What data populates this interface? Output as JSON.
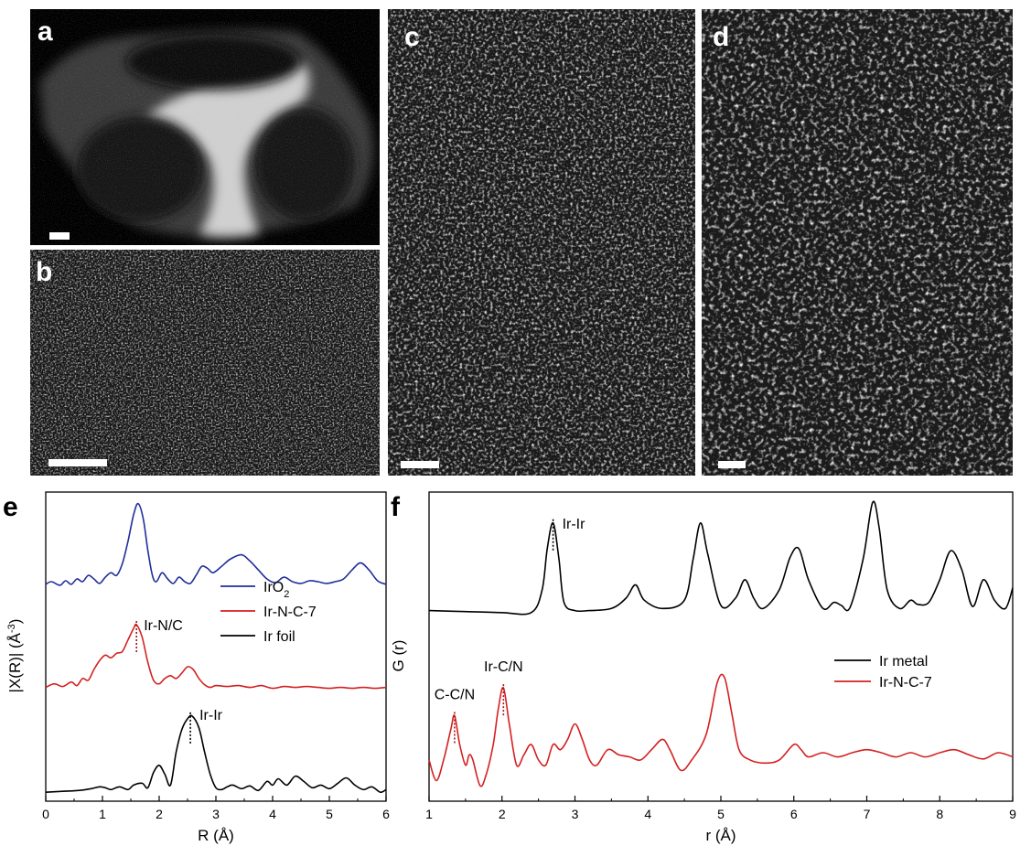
{
  "panels": {
    "a": {
      "label": "a"
    },
    "b": {
      "label": "b"
    },
    "c": {
      "label": "c"
    },
    "d": {
      "label": "d"
    },
    "e": {
      "label": "e"
    },
    "f": {
      "label": "f"
    }
  },
  "colors": {
    "irO2": "#1f2e9c",
    "irNC7": "#d42020",
    "ir": "#000000",
    "marker_red": "#a0151c"
  },
  "chart_data": [
    {
      "type": "line",
      "panel": "e",
      "xlabel": "R (Å)",
      "ylabel": "|X(R)| (Å-3)",
      "ylabel_main": "|X(R)| (Å",
      "ylabel_sup": "-3",
      "ylabel_end": ")",
      "xlim": [
        0,
        6
      ],
      "xticks": [
        "0",
        "1",
        "2",
        "3",
        "4",
        "5",
        "6"
      ],
      "legend_placement": "right",
      "legend": [
        {
          "name": "IrO",
          "sub": "2",
          "color": "#1f2e9c"
        },
        {
          "name": "Ir-N-C-7",
          "sub": "",
          "color": "#d42020"
        },
        {
          "name": "Ir foil",
          "sub": "",
          "color": "#000000"
        }
      ],
      "annotations": [
        {
          "text": "Ir-N/C",
          "x": 1.6
        },
        {
          "text": "Ir-Ir",
          "x": 2.55
        }
      ],
      "series": [
        {
          "key": "irO2",
          "offset": 2.3,
          "x": [
            0,
            0.1,
            0.25,
            0.35,
            0.45,
            0.55,
            0.65,
            0.75,
            0.85,
            0.95,
            1.05,
            1.15,
            1.25,
            1.35,
            1.45,
            1.55,
            1.63,
            1.72,
            1.8,
            1.88,
            1.95,
            2.05,
            2.15,
            2.25,
            2.35,
            2.45,
            2.55,
            2.65,
            2.75,
            2.85,
            2.95,
            3.1,
            3.25,
            3.45,
            3.6,
            3.75,
            3.9,
            4.05,
            4.2,
            4.35,
            4.5,
            4.65,
            4.8,
            4.95,
            5.1,
            5.25,
            5.4,
            5.55,
            5.7,
            5.85,
            6.0
          ],
          "y": [
            0.02,
            0.05,
            0.01,
            0.06,
            0.02,
            0.08,
            0.05,
            0.12,
            0.08,
            0.03,
            0.1,
            0.15,
            0.12,
            0.25,
            0.5,
            0.8,
            0.92,
            0.75,
            0.4,
            0.12,
            0.05,
            0.15,
            0.08,
            0.03,
            0.1,
            0.05,
            0.03,
            0.12,
            0.22,
            0.2,
            0.15,
            0.22,
            0.3,
            0.35,
            0.28,
            0.18,
            0.08,
            0.04,
            0.1,
            0.05,
            0.03,
            0.06,
            0.05,
            0.03,
            0.05,
            0.08,
            0.18,
            0.26,
            0.18,
            0.06,
            0.02
          ]
        },
        {
          "key": "irNC7",
          "offset": 1.15,
          "x": [
            0,
            0.15,
            0.3,
            0.45,
            0.55,
            0.65,
            0.75,
            0.85,
            0.95,
            1.05,
            1.15,
            1.25,
            1.35,
            1.45,
            1.55,
            1.6,
            1.7,
            1.8,
            1.9,
            2.0,
            2.1,
            2.2,
            2.3,
            2.4,
            2.5,
            2.6,
            2.7,
            2.8,
            2.9,
            3.0,
            3.2,
            3.4,
            3.6,
            3.8,
            4.0,
            4.2,
            4.4,
            4.6,
            4.8,
            5.0,
            5.2,
            5.4,
            5.6,
            5.8,
            6.0
          ],
          "y": [
            0.02,
            0.06,
            0.03,
            0.08,
            0.04,
            0.12,
            0.1,
            0.22,
            0.32,
            0.38,
            0.35,
            0.4,
            0.42,
            0.55,
            0.68,
            0.72,
            0.58,
            0.3,
            0.1,
            0.06,
            0.12,
            0.15,
            0.12,
            0.18,
            0.25,
            0.22,
            0.12,
            0.05,
            0.02,
            0.04,
            0.03,
            0.04,
            0.02,
            0.04,
            0.01,
            0.03,
            0.02,
            0.03,
            0.02,
            0.01,
            0.02,
            0.01,
            0.02,
            0.01,
            0.02
          ]
        },
        {
          "key": "ir",
          "offset": 0.0,
          "x": [
            0,
            0.3,
            0.6,
            0.8,
            0.95,
            1.05,
            1.15,
            1.3,
            1.45,
            1.55,
            1.7,
            1.8,
            1.9,
            2.0,
            2.1,
            2.2,
            2.3,
            2.4,
            2.5,
            2.58,
            2.7,
            2.8,
            2.9,
            3.0,
            3.1,
            3.2,
            3.3,
            3.45,
            3.6,
            3.75,
            3.9,
            4.0,
            4.1,
            4.25,
            4.4,
            4.55,
            4.7,
            4.85,
            5.0,
            5.15,
            5.3,
            5.45,
            5.6,
            5.75,
            5.9,
            6.0
          ],
          "y": [
            0.0,
            0.01,
            0.02,
            0.04,
            0.06,
            0.05,
            0.03,
            0.06,
            0.03,
            0.08,
            0.1,
            0.05,
            0.22,
            0.3,
            0.2,
            0.08,
            0.45,
            0.7,
            0.82,
            0.85,
            0.72,
            0.45,
            0.2,
            0.05,
            0.03,
            0.06,
            0.08,
            0.04,
            0.07,
            0.02,
            0.12,
            0.08,
            0.15,
            0.08,
            0.18,
            0.12,
            0.05,
            0.08,
            0.04,
            0.1,
            0.16,
            0.08,
            0.03,
            0.06,
            0.0,
            0.03
          ]
        }
      ]
    },
    {
      "type": "line",
      "panel": "f",
      "xlabel": "r (Å)",
      "ylabel": "G (r)",
      "xlim": [
        1,
        9
      ],
      "xticks": [
        "1",
        "2",
        "3",
        "4",
        "5",
        "6",
        "7",
        "8",
        "9"
      ],
      "legend_placement": "right",
      "legend": [
        {
          "name": "Ir metal",
          "color": "#000000"
        },
        {
          "name": "Ir-N-C-7",
          "color": "#d42020"
        }
      ],
      "annotations": [
        {
          "text": "Ir-Ir",
          "x": 2.7
        },
        {
          "text": "Ir-C/N",
          "x": 2.02
        },
        {
          "text": "C-C/N",
          "x": 1.35
        }
      ],
      "series": [
        {
          "key": "ir",
          "offset": 1.5,
          "x": [
            1.0,
            1.5,
            2.0,
            2.4,
            2.55,
            2.62,
            2.7,
            2.78,
            2.85,
            3.0,
            3.2,
            3.5,
            3.7,
            3.83,
            3.95,
            4.2,
            4.5,
            4.62,
            4.72,
            4.82,
            5.0,
            5.2,
            5.33,
            5.45,
            5.58,
            5.8,
            5.95,
            6.07,
            6.2,
            6.4,
            6.55,
            6.65,
            6.77,
            6.95,
            7.08,
            7.17,
            7.28,
            7.45,
            7.6,
            7.7,
            7.85,
            8.0,
            8.15,
            8.3,
            8.45,
            8.6,
            8.75,
            8.9,
            9.0
          ],
          "y": [
            0.0,
            -0.01,
            -0.02,
            -0.02,
            0.2,
            0.6,
            0.85,
            0.5,
            0.08,
            0.0,
            0.0,
            0.02,
            0.12,
            0.25,
            0.1,
            0.02,
            0.1,
            0.5,
            0.85,
            0.55,
            0.05,
            0.12,
            0.3,
            0.12,
            0.02,
            0.2,
            0.52,
            0.6,
            0.3,
            0.02,
            0.08,
            0.05,
            0.03,
            0.5,
            1.05,
            0.8,
            0.2,
            0.02,
            0.1,
            0.06,
            0.08,
            0.3,
            0.58,
            0.4,
            0.04,
            0.3,
            0.1,
            0.02,
            0.22
          ]
        },
        {
          "key": "irNC7",
          "offset": 0.0,
          "x": [
            1.0,
            1.1,
            1.2,
            1.3,
            1.35,
            1.42,
            1.5,
            1.55,
            1.6,
            1.7,
            1.78,
            1.88,
            1.95,
            2.02,
            2.1,
            2.2,
            2.3,
            2.4,
            2.5,
            2.6,
            2.7,
            2.8,
            2.9,
            3.0,
            3.1,
            3.2,
            3.3,
            3.45,
            3.6,
            3.75,
            3.9,
            4.05,
            4.2,
            4.3,
            4.45,
            4.6,
            4.8,
            4.95,
            5.05,
            5.15,
            5.25,
            5.4,
            5.6,
            5.8,
            6.0,
            6.1,
            6.2,
            6.4,
            6.6,
            6.8,
            7.0,
            7.2,
            7.4,
            7.6,
            7.8,
            8.0,
            8.2,
            8.4,
            8.6,
            8.8,
            9.0
          ],
          "y": [
            0.05,
            -0.15,
            0.05,
            0.35,
            0.48,
            0.2,
            0.0,
            0.1,
            0.05,
            -0.2,
            -0.1,
            0.2,
            0.55,
            0.75,
            0.4,
            0.0,
            0.1,
            0.2,
            0.05,
            0.0,
            0.2,
            0.15,
            0.25,
            0.4,
            0.25,
            0.05,
            0.0,
            0.15,
            0.1,
            0.08,
            0.05,
            0.15,
            0.25,
            0.15,
            -0.05,
            0.05,
            0.3,
            0.8,
            0.85,
            0.5,
            0.15,
            0.05,
            0.02,
            0.05,
            0.2,
            0.15,
            0.08,
            0.12,
            0.08,
            0.12,
            0.15,
            0.12,
            0.08,
            0.12,
            0.08,
            0.12,
            0.15,
            0.1,
            0.06,
            0.12,
            0.08
          ]
        }
      ]
    }
  ]
}
